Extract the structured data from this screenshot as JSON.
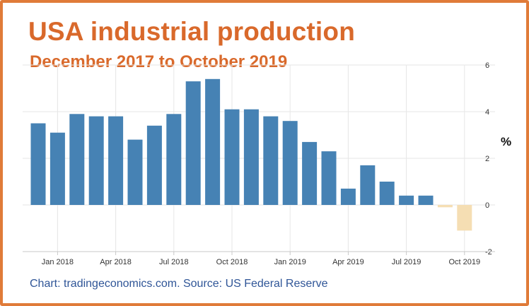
{
  "title": "USA industrial production",
  "subtitle": "December 2017 to October 2019",
  "unit_label": "%",
  "source": "Chart: tradingeconomics.com. Source: US Federal Reserve",
  "colors": {
    "positive_bar": "#4682b4",
    "negative_bar": "#f5deb3",
    "title": "#d9692b",
    "border": "#e07b39",
    "source_text": "#2f5597",
    "grid": "#e6e6e6"
  },
  "chart_data": {
    "type": "bar",
    "x": [
      "2017-12",
      "2018-01",
      "2018-02",
      "2018-03",
      "2018-04",
      "2018-05",
      "2018-06",
      "2018-07",
      "2018-08",
      "2018-09",
      "2018-10",
      "2018-11",
      "2018-12",
      "2019-01",
      "2019-02",
      "2019-03",
      "2019-04",
      "2019-05",
      "2019-06",
      "2019-07",
      "2019-08",
      "2019-09",
      "2019-10"
    ],
    "values": [
      3.5,
      3.1,
      3.9,
      3.8,
      3.8,
      2.8,
      3.4,
      3.9,
      5.3,
      5.4,
      4.1,
      4.1,
      3.8,
      3.6,
      2.7,
      2.3,
      0.7,
      1.7,
      1.0,
      0.4,
      0.4,
      -0.1,
      -1.1
    ],
    "x_tick_labels": [
      "Jan 2018",
      "Apr 2018",
      "Jul 2018",
      "Oct 2018",
      "Jan 2019",
      "Apr 2019",
      "Jul 2019",
      "Oct 2019"
    ],
    "x_tick_positions": [
      "2018-01",
      "2018-04",
      "2018-07",
      "2018-10",
      "2019-01",
      "2019-04",
      "2019-07",
      "2019-10"
    ],
    "y_ticks": [
      6,
      4,
      2,
      0,
      -2
    ],
    "ylim": [
      -2,
      6
    ],
    "ylabel": "%",
    "grid": true,
    "y_axis_side": "right"
  }
}
